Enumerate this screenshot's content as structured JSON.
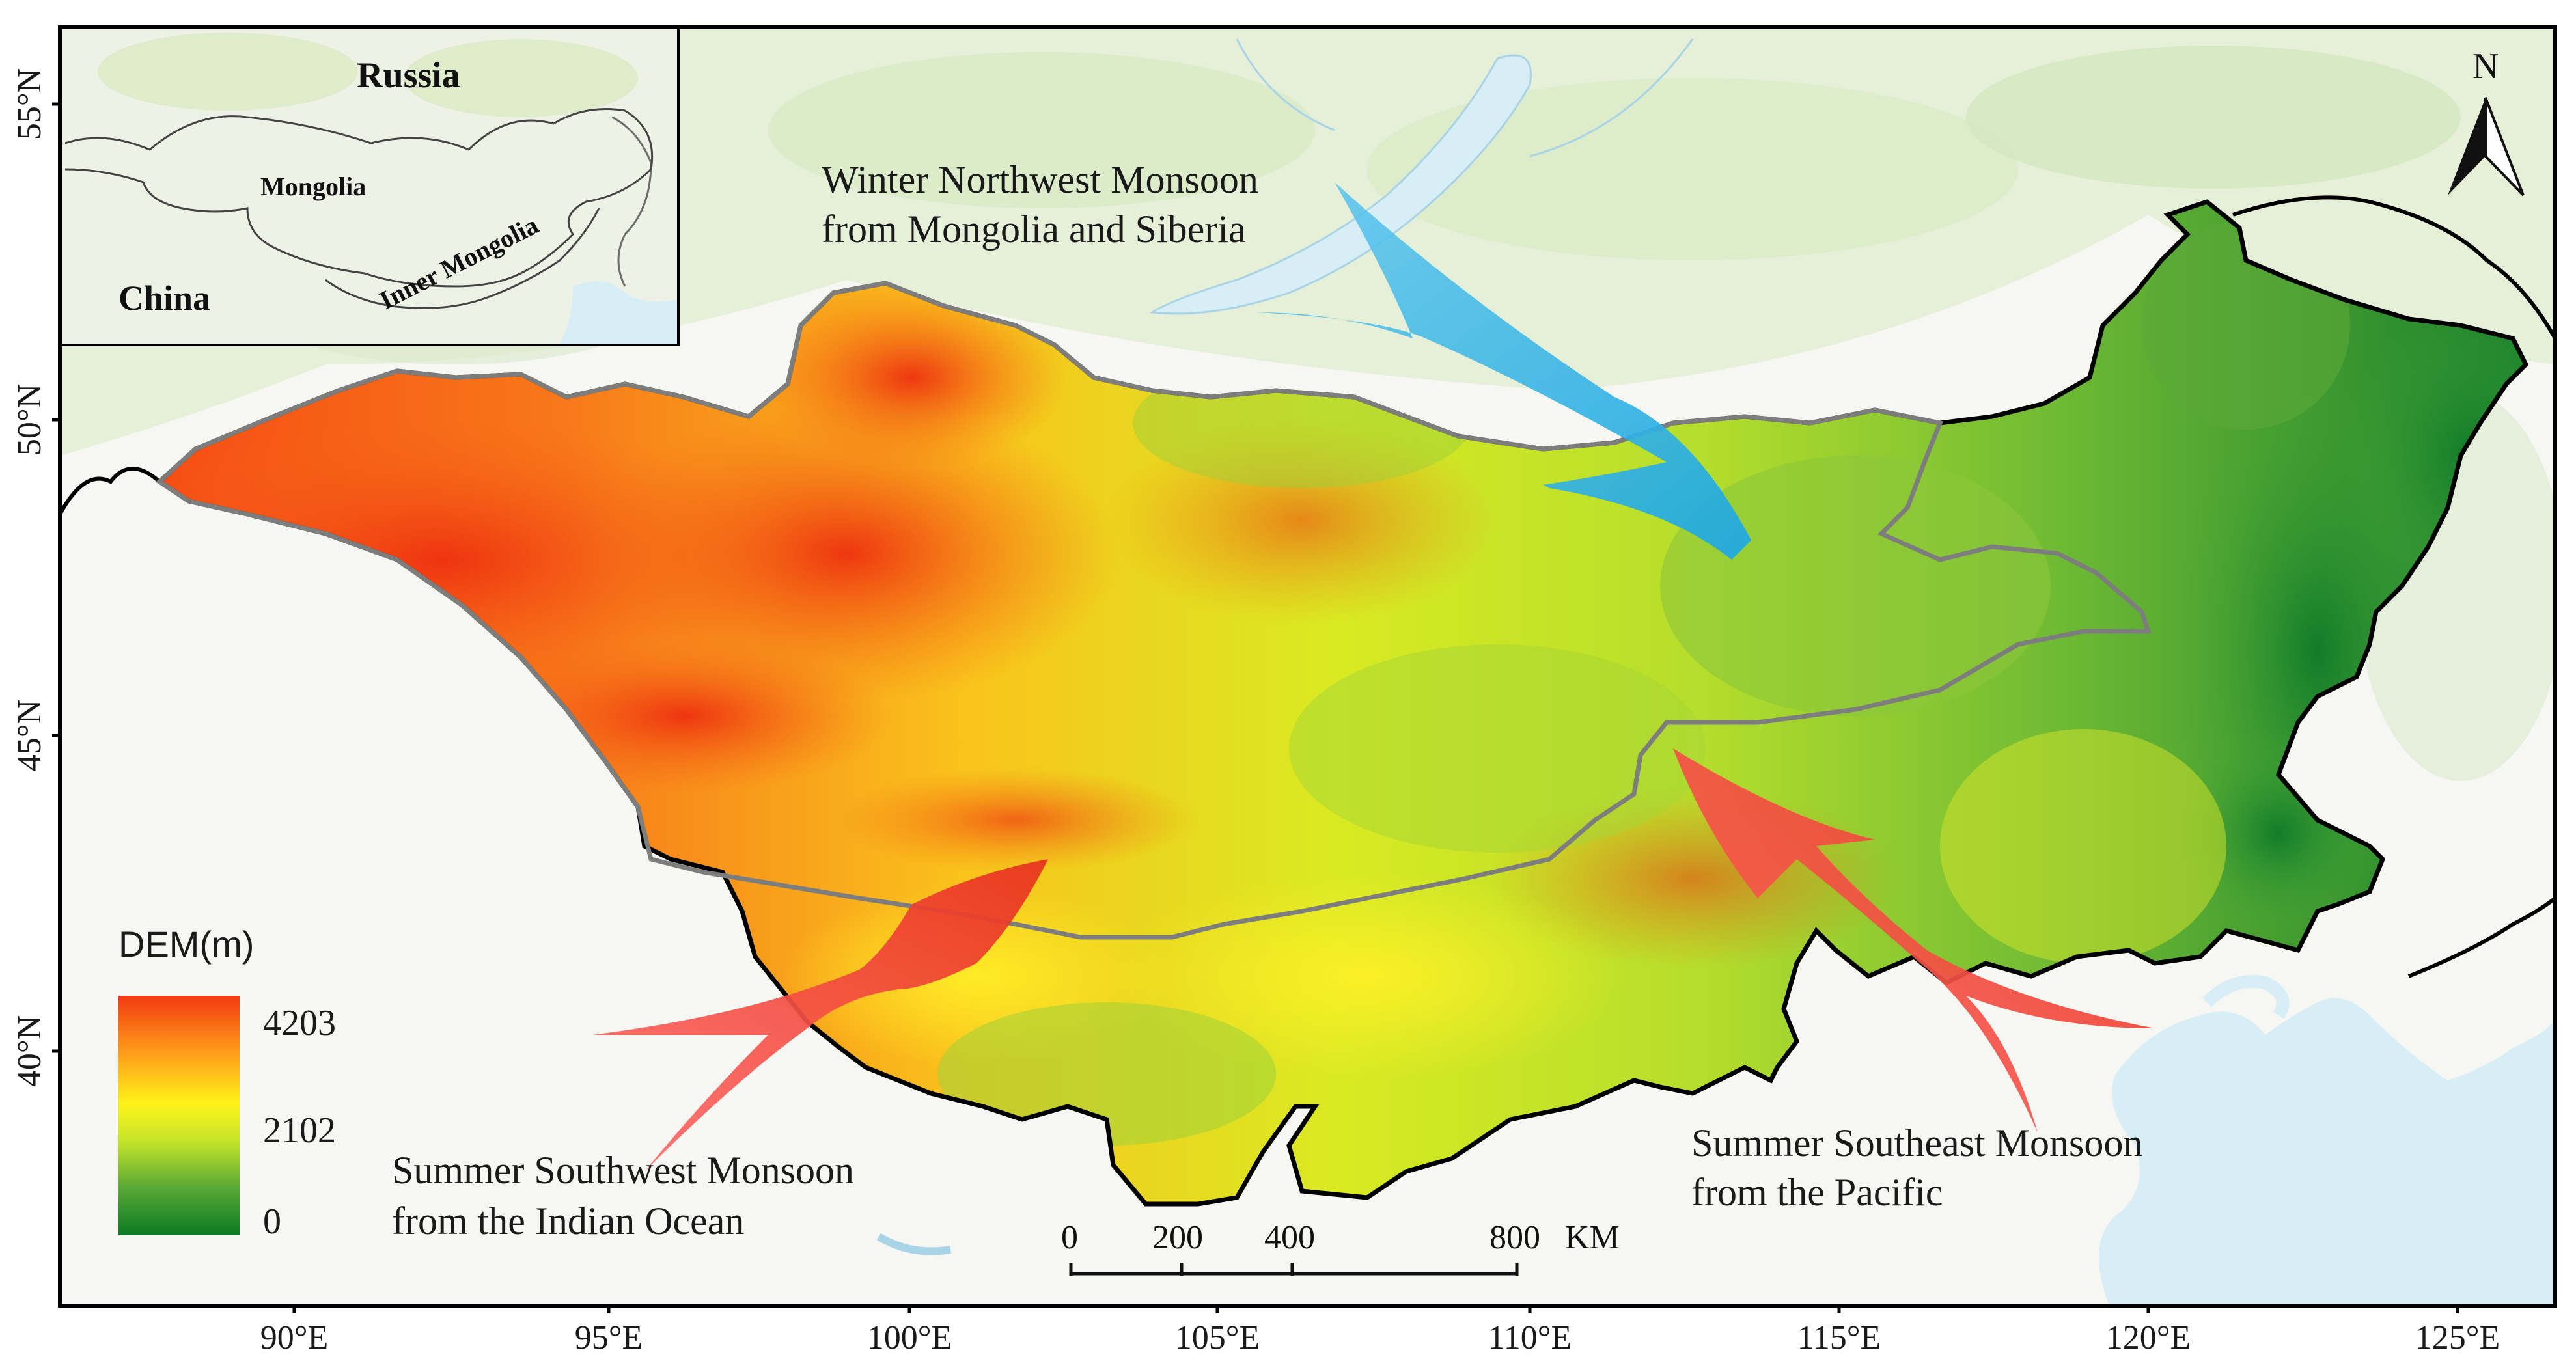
{
  "map": {
    "inset": {
      "labels": [
        "Russia",
        "Mongolia",
        "China",
        "Inner Mongolia"
      ]
    },
    "arrows": {
      "winter": "Winter Northwest Monsoon",
      "winter_line2": "from Mongolia and Siberia",
      "sw_line1": "Summer Southwest Monsoon",
      "sw_line2": "from the Indian Ocean",
      "se_line1": "Summer Southeast Monsoon",
      "se_line2": "from the Pacific"
    },
    "legend": {
      "title": "DEM(m)",
      "max": "4203",
      "mid": "2102",
      "min": "0"
    },
    "scale_bar": {
      "labels": [
        "0",
        "200",
        "400",
        "800"
      ],
      "unit": "KM"
    },
    "north_arrow": "N",
    "lat_ticks": [
      "55°N",
      "50°N",
      "45°N",
      "40°N"
    ],
    "lon_ticks": [
      "90°E",
      "95°E",
      "100°E",
      "105°E",
      "110°E",
      "115°E",
      "120°E",
      "125°E"
    ],
    "colors": {
      "high": "#f23a12",
      "mid_high": "#ffd21a",
      "mid": "#e8f01c",
      "low_mid": "#8cc63a",
      "low": "#12842a",
      "winter_arrow": "#27b1e6",
      "summer_arrow": "#f0473e",
      "water": "#d8eef7",
      "background_land": "#eef4e4"
    }
  }
}
